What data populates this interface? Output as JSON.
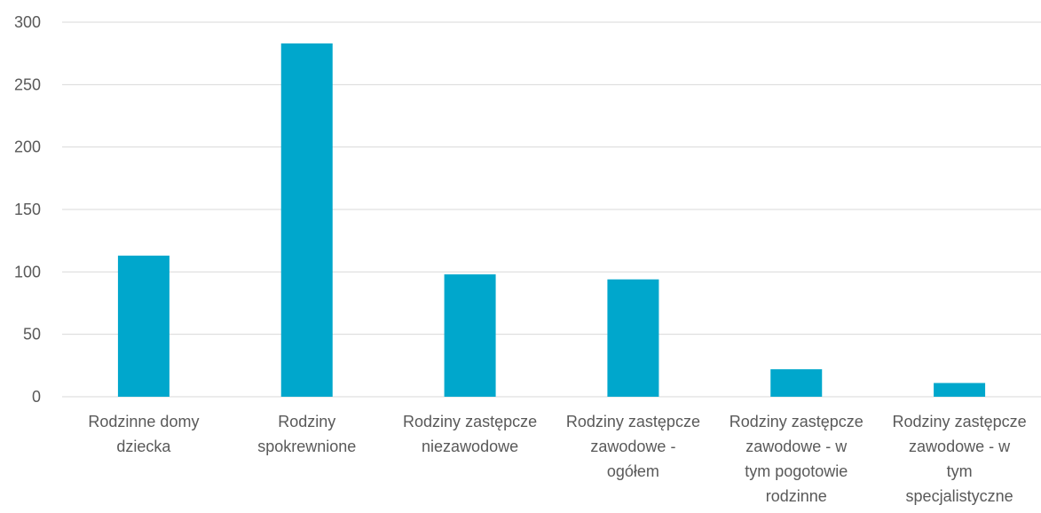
{
  "chart_data": {
    "type": "bar",
    "title": "",
    "xlabel": "",
    "ylabel": "",
    "ylim": [
      0,
      300
    ],
    "yticks": [
      0,
      50,
      100,
      150,
      200,
      250,
      300
    ],
    "grid": true,
    "legend": "none",
    "bar_color": "#00a7cc",
    "categories": [
      [
        "Rodzinne domy",
        "dziecka"
      ],
      [
        "Rodziny",
        "spokrewnione"
      ],
      [
        "Rodziny zastępcze",
        "niezawodowe"
      ],
      [
        "Rodziny zastępcze",
        "zawodowe -",
        "ogółem"
      ],
      [
        "Rodziny zastępcze",
        "zawodowe - w",
        "tym pogotowie",
        "rodzinne"
      ],
      [
        "Rodziny zastępcze",
        "zawodowe - w",
        "tym",
        "specjalistyczne"
      ]
    ],
    "values": [
      113,
      283,
      98,
      94,
      22,
      11
    ]
  }
}
